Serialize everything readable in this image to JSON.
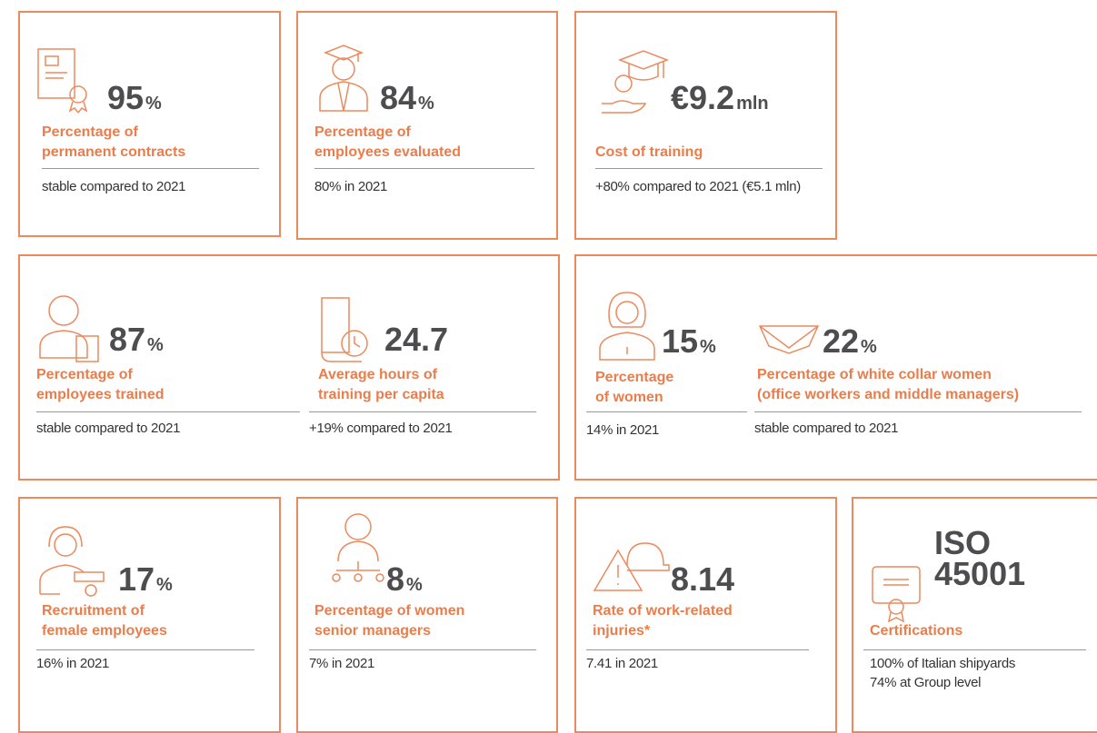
{
  "cards": [
    {
      "value": "95",
      "unit": "%",
      "label": [
        "Percentage of",
        "permanent contracts"
      ],
      "note": [
        "stable compared to 2021"
      ]
    },
    {
      "value": "84",
      "unit": "%",
      "label": [
        "Percentage of",
        "employees evaluated"
      ],
      "note": [
        "80% in 2021"
      ]
    },
    {
      "value": "€9.2",
      "unit": "mln",
      "label": [
        "Cost of training"
      ],
      "note": [
        "+80% compared to 2021 (€5.1 mln)"
      ]
    },
    {
      "value": "87",
      "unit": "%",
      "label": [
        "Percentage of",
        "employees trained"
      ],
      "note": [
        "stable compared to 2021"
      ]
    },
    {
      "value": "24.7",
      "label": [
        "Average hours of",
        "training per capita"
      ],
      "note": [
        "+19% compared to 2021"
      ]
    },
    {
      "value": "15",
      "unit": "%",
      "label": [
        "Percentage",
        "of women"
      ],
      "note": [
        "14% in 2021"
      ]
    },
    {
      "value": "22",
      "unit": "%",
      "label": [
        "Percentage of white collar women",
        "(office workers and middle managers)"
      ],
      "note": [
        "stable compared to 2021"
      ]
    },
    {
      "value": "17",
      "unit": "%",
      "label": [
        "Recruitment of",
        "female employees"
      ],
      "note": [
        "16% in 2021"
      ]
    },
    {
      "value": "8",
      "unit": "%",
      "label": [
        "Percentage of women",
        "senior managers"
      ],
      "note": [
        "7% in 2021"
      ]
    },
    {
      "value": "8.14",
      "label": [
        "Rate of work-related",
        "injuries*"
      ],
      "note": [
        "7.41 in 2021"
      ]
    },
    {
      "value": [
        "ISO",
        "45001"
      ],
      "label": [
        "Certifications"
      ],
      "note": [
        "100% of Italian shipyards",
        "74% at Group level"
      ]
    }
  ]
}
